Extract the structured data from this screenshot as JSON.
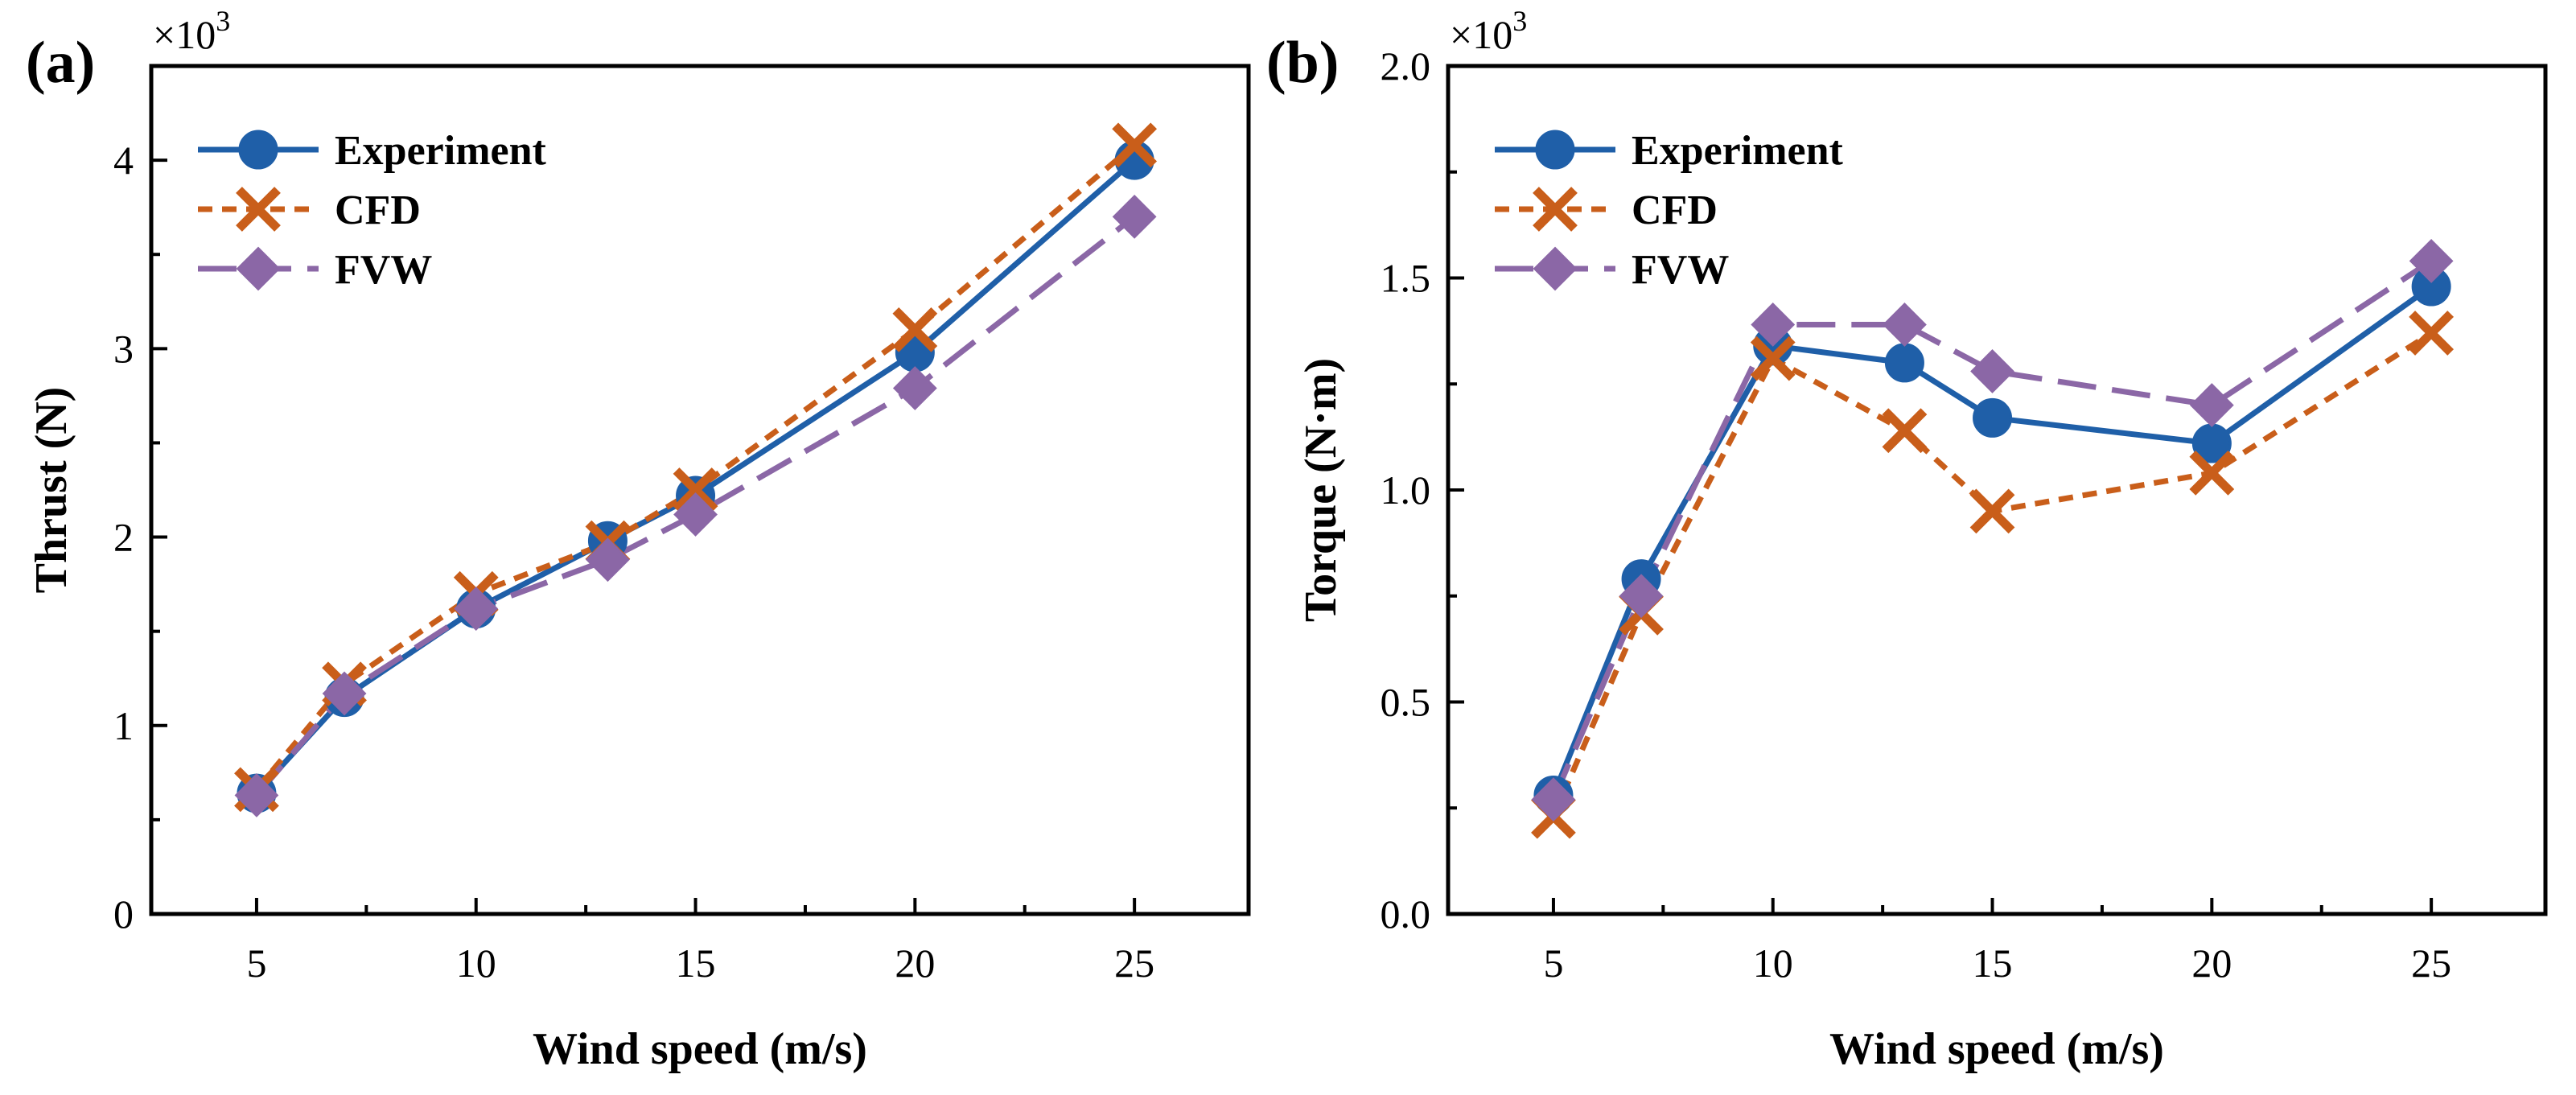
{
  "chart_data": [
    {
      "type": "line",
      "panel_label": "(a)",
      "xlabel": "Wind speed (m/s)",
      "ylabel": "Thrust (N)",
      "y_multiplier_text": "×10",
      "y_multiplier_exp": "3",
      "x_ticks": [
        5,
        10,
        15,
        20,
        25
      ],
      "y_ticks": [
        0,
        1,
        2,
        3,
        4
      ],
      "xlim": [
        2.6,
        27.6
      ],
      "ylim": [
        0,
        4.5
      ],
      "legend_position": "top-left",
      "x": [
        5,
        7,
        10,
        13,
        15,
        20,
        25
      ],
      "series": [
        {
          "name": "Experiment",
          "values": [
            0.64,
            1.15,
            1.62,
            1.98,
            2.22,
            2.98,
            4.0
          ]
        },
        {
          "name": "CFD",
          "values": [
            0.66,
            1.22,
            1.7,
            1.97,
            2.25,
            3.1,
            4.08
          ]
        },
        {
          "name": "FVW",
          "values": [
            0.63,
            1.17,
            1.62,
            1.88,
            2.12,
            2.79,
            3.7
          ]
        }
      ]
    },
    {
      "type": "line",
      "panel_label": "(b)",
      "xlabel": "Wind speed (m/s)",
      "ylabel": "Torque (N·m)",
      "y_multiplier_text": "×10",
      "y_multiplier_exp": "3",
      "x_ticks": [
        5,
        10,
        15,
        20,
        25
      ],
      "y_ticks": [
        "0.0",
        "0.5",
        "1.0",
        "1.5",
        "2.0"
      ],
      "xlim": [
        2.6,
        27.6
      ],
      "ylim": [
        0,
        2.0
      ],
      "legend_position": "top-left",
      "x": [
        5,
        7,
        10,
        13,
        15,
        20,
        25
      ],
      "series": [
        {
          "name": "Experiment",
          "values": [
            0.28,
            0.79,
            1.34,
            1.3,
            1.17,
            1.11,
            1.48
          ]
        },
        {
          "name": "CFD",
          "values": [
            0.23,
            0.71,
            1.31,
            1.14,
            0.95,
            1.04,
            1.37
          ]
        },
        {
          "name": "FVW",
          "values": [
            0.27,
            0.75,
            1.39,
            1.39,
            1.28,
            1.2,
            1.54
          ]
        }
      ]
    }
  ],
  "styles": {
    "Experiment": {
      "color": "#1f5fa8",
      "dash": "",
      "marker": "circle"
    },
    "CFD": {
      "color": "#c95e1a",
      "dash": "18,12",
      "marker": "cross"
    },
    "FVW": {
      "color": "#8b67a6",
      "dash": "48,20",
      "marker": "diamond"
    }
  }
}
